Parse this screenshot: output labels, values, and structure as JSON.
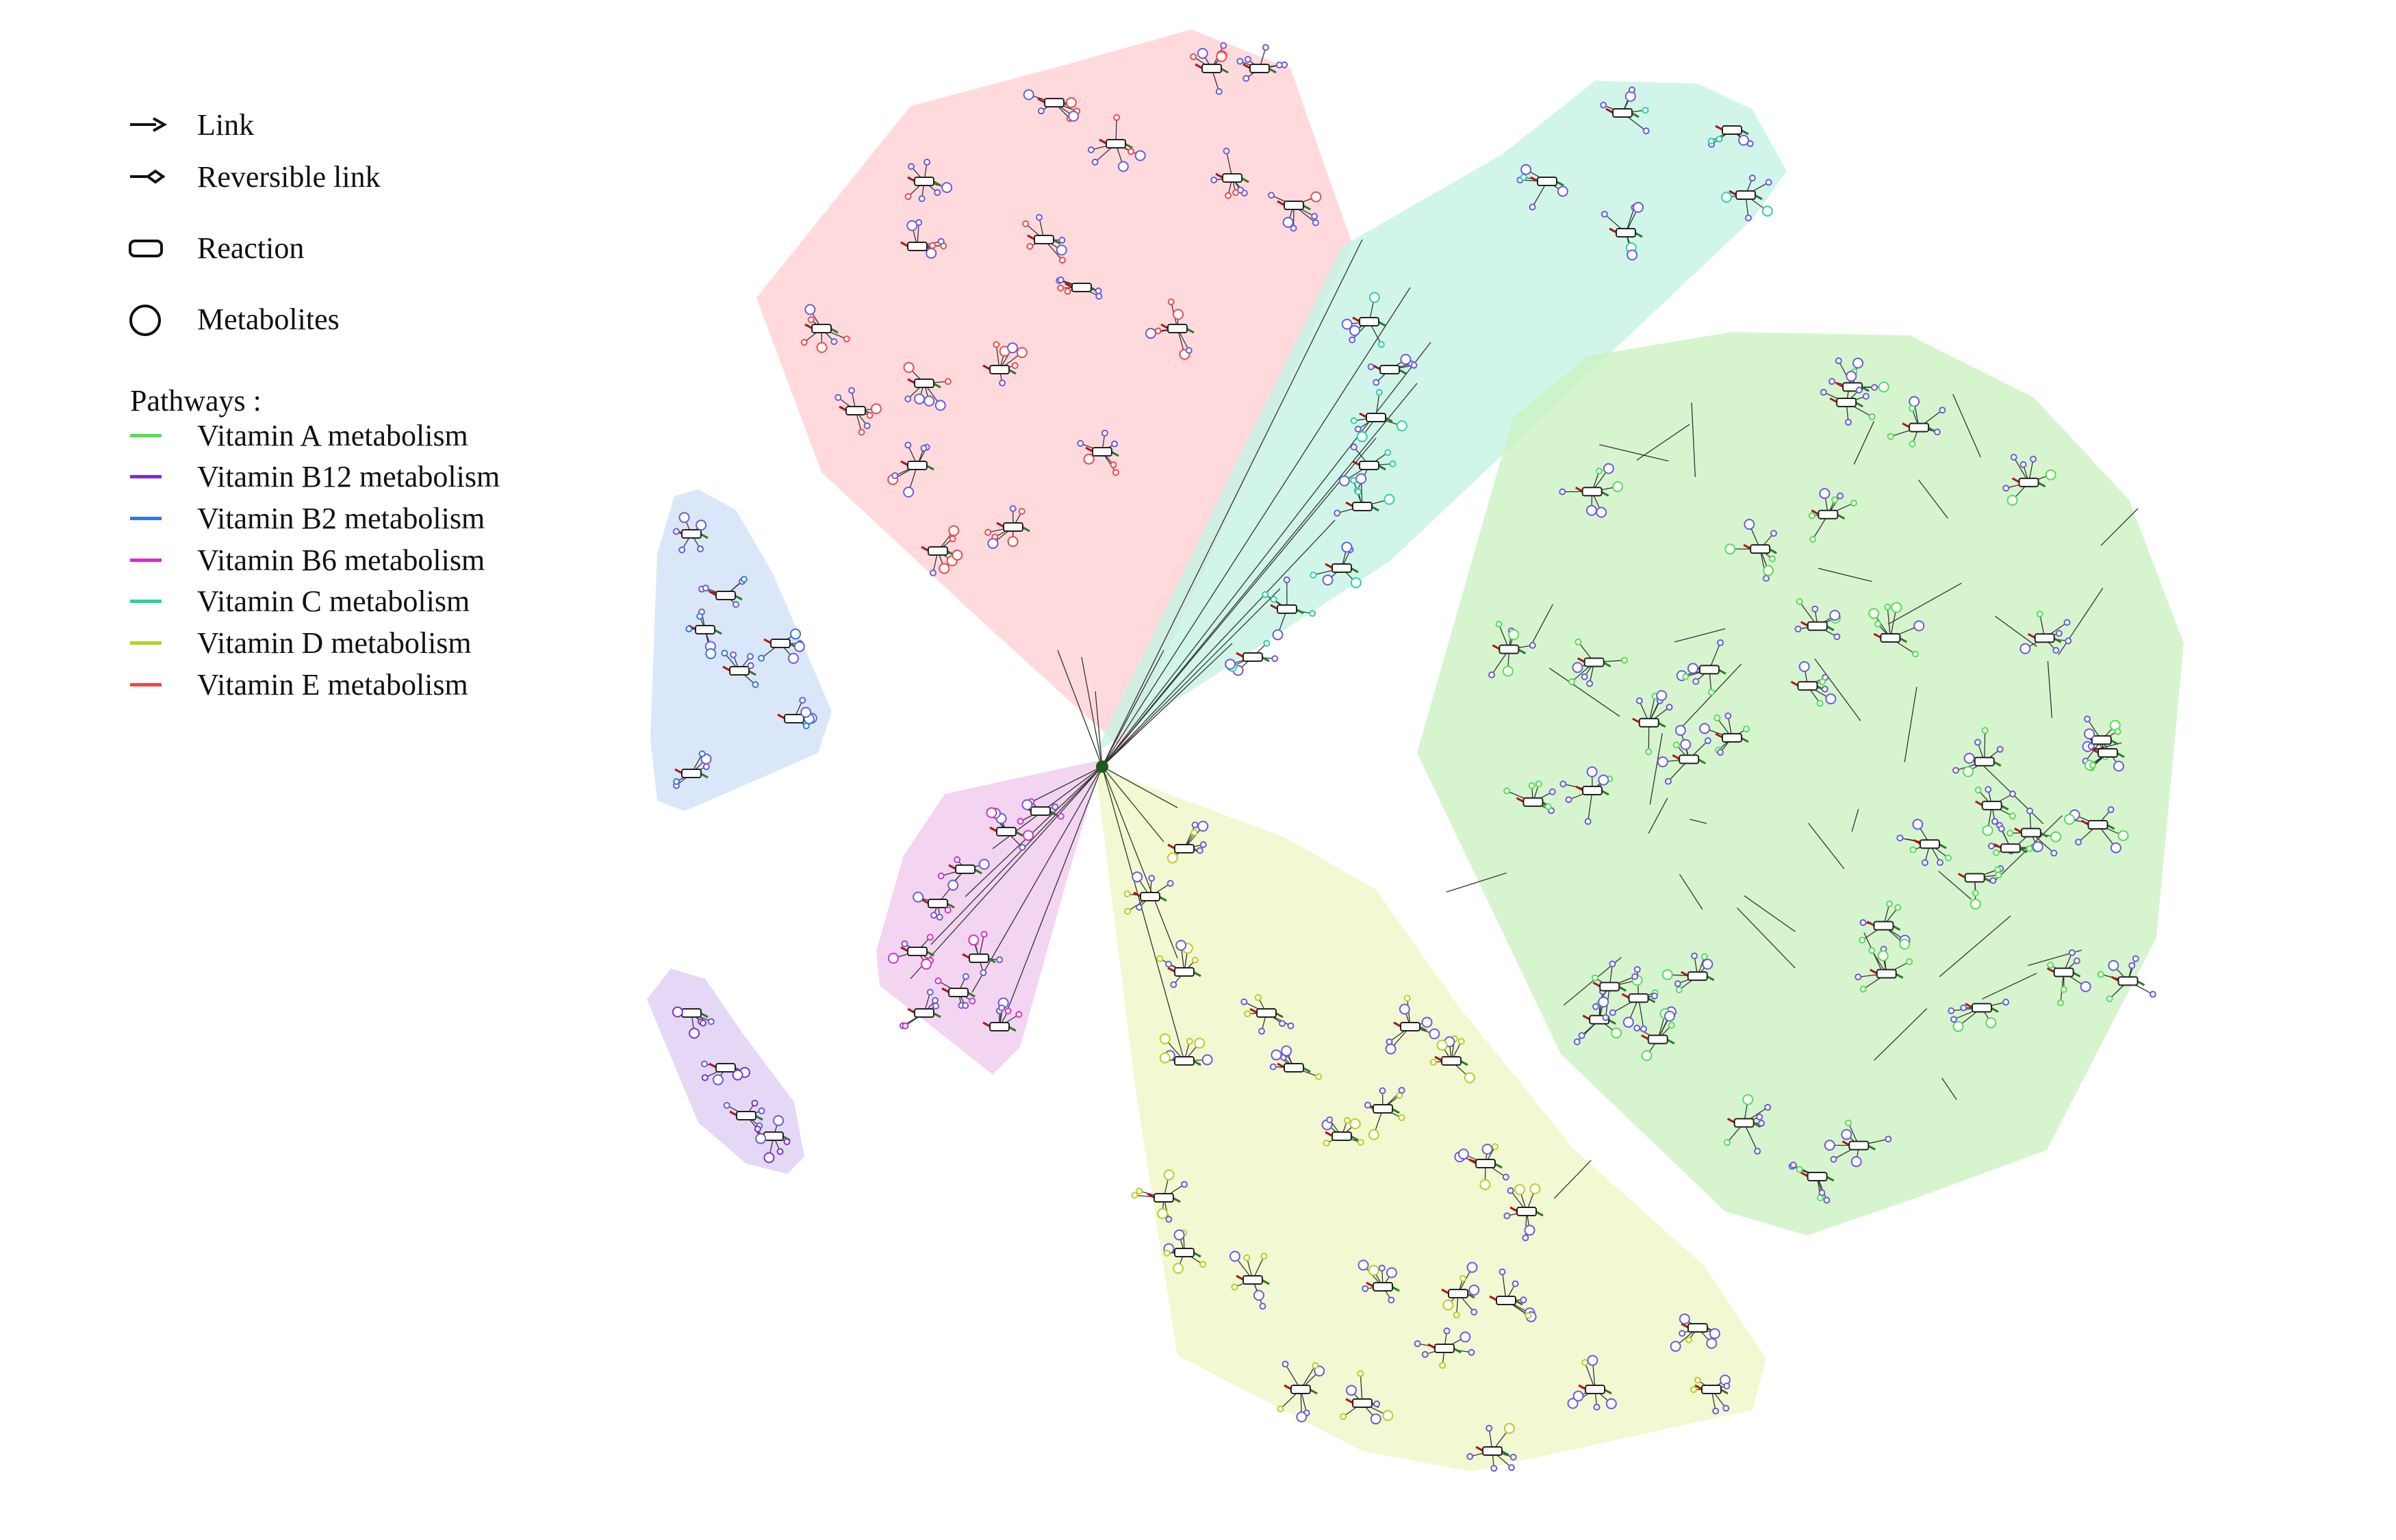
{
  "legend": {
    "symbols": [
      {
        "key": "link",
        "label": "Link",
        "icon": "arrow-icon"
      },
      {
        "key": "reversible",
        "label": "Reversible link",
        "icon": "reversible-arrow-icon"
      },
      {
        "key": "reaction",
        "label": "Reaction",
        "icon": "rounded-rect-icon"
      },
      {
        "key": "metabolite",
        "label": "Metabolites",
        "icon": "circle-icon"
      }
    ],
    "pathways_title": "Pathways :",
    "pathways": [
      {
        "label": "Vitamin A metabolism",
        "color": "#4ee24e"
      },
      {
        "label": "Vitamin B12 metabolism",
        "color": "#7a2fd6"
      },
      {
        "label": "Vitamin B2 metabolism",
        "color": "#2f78e0"
      },
      {
        "label": "Vitamin B6 metabolism",
        "color": "#d62fc8"
      },
      {
        "label": "Vitamin C metabolism",
        "color": "#26d3a4"
      },
      {
        "label": "Vitamin D metabolism",
        "color": "#b9cf1e"
      },
      {
        "label": "Vitamin E metabolism",
        "color": "#f04848"
      }
    ]
  },
  "colors": {
    "reaction_stroke": "#222222",
    "reaction_edge_red": "#b01515",
    "link_stroke": "#333333",
    "hub_green": "#1d5a1d",
    "metabolite_default": "#6a5adf"
  }
}
